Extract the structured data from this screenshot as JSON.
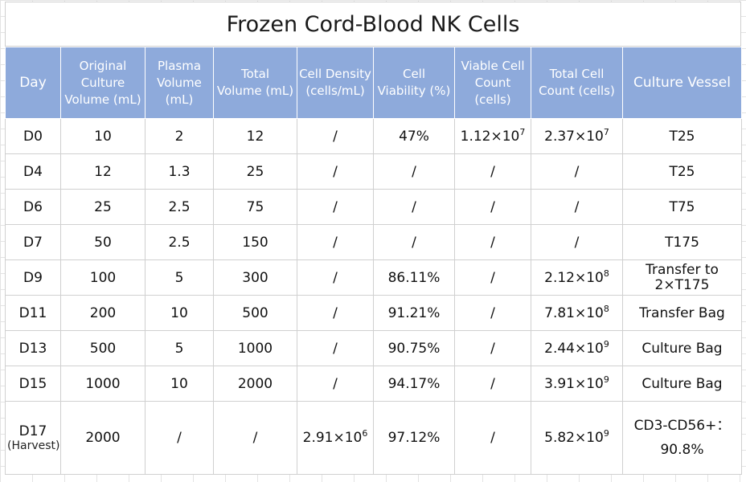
{
  "title": "Frozen Cord-Blood NK Cells",
  "headers": {
    "day": "Day",
    "original_volume": "Original\nCulture\nVolume (mL)",
    "plasma_volume": "Plasma\nVolume\n(mL)",
    "total_volume": "Total\nVolume (mL)",
    "cell_density": "Cell Density\n(cells/mL)",
    "cell_viability": "Cell\nViability (%)",
    "viable_count": "Viable Cell\nCount (cells)",
    "total_count": "Total Cell\nCount (cells)",
    "vessel": "Culture Vessel"
  },
  "rows": [
    {
      "day": "D0",
      "orig": "10",
      "plasma": "2",
      "total": "12",
      "density": "/",
      "viability": "47%",
      "viable_base": "1.12×10",
      "viable_exp": "7",
      "count_base": "2.37×10",
      "count_exp": "7",
      "vessel": "T25"
    },
    {
      "day": "D4",
      "orig": "12",
      "plasma": "1.3",
      "total": "25",
      "density": "/",
      "viability": "/",
      "viable_base": "/",
      "viable_exp": "",
      "count_base": "/",
      "count_exp": "",
      "vessel": "T25"
    },
    {
      "day": "D6",
      "orig": "25",
      "plasma": "2.5",
      "total": "75",
      "density": "/",
      "viability": "/",
      "viable_base": "/",
      "viable_exp": "",
      "count_base": "/",
      "count_exp": "",
      "vessel": "T75"
    },
    {
      "day": "D7",
      "orig": "50",
      "plasma": "2.5",
      "total": "150",
      "density": "/",
      "viability": "/",
      "viable_base": "/",
      "viable_exp": "",
      "count_base": "/",
      "count_exp": "",
      "vessel": "T175"
    },
    {
      "day": "D9",
      "orig": "100",
      "plasma": "5",
      "total": "300",
      "density": "/",
      "viability": "86.11%",
      "viable_base": "/",
      "viable_exp": "",
      "count_base": "2.12×10",
      "count_exp": "8",
      "vessel": "Transfer to\n2×T175"
    },
    {
      "day": "D11",
      "orig": "200",
      "plasma": "10",
      "total": "500",
      "density": "/",
      "viability": "91.21%",
      "viable_base": "/",
      "viable_exp": "",
      "count_base": "7.81×10",
      "count_exp": "8",
      "vessel": "Transfer Bag"
    },
    {
      "day": "D13",
      "orig": "500",
      "plasma": "5",
      "total": "1000",
      "density": "/",
      "viability": "90.75%",
      "viable_base": "/",
      "viable_exp": "",
      "count_base": "2.44×10",
      "count_exp": "9",
      "vessel": "Culture Bag"
    },
    {
      "day": "D15",
      "orig": "1000",
      "plasma": "10",
      "total": "2000",
      "density": "/",
      "viability": "94.17%",
      "viable_base": "/",
      "viable_exp": "",
      "count_base": "3.91×10",
      "count_exp": "9",
      "vessel": "Culture Bag"
    }
  ],
  "last_row": {
    "day": "D17",
    "day_note": "(Harvest)",
    "orig": "2000",
    "plasma": "/",
    "total": "/",
    "density_base": "2.91×10",
    "density_exp": "6",
    "viability": "97.12%",
    "viable": "/",
    "count_base": "5.82×10",
    "count_exp": "9",
    "vessel": "CD3-CD56+：\n90.8%"
  }
}
